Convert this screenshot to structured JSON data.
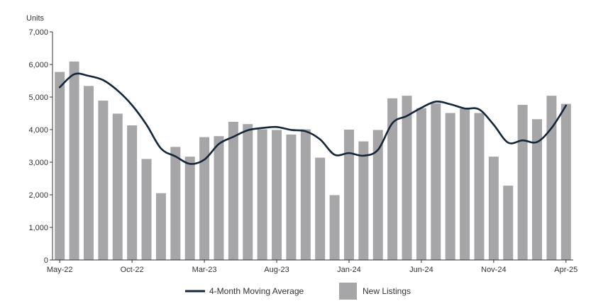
{
  "chart_data": {
    "type": "bar",
    "ylabel": "Units",
    "ylim": [
      0,
      7000
    ],
    "yticks": [
      "0",
      "1,000",
      "2,000",
      "3,000",
      "4,000",
      "5,000",
      "6,000",
      "7,000"
    ],
    "yticks_values": [
      0,
      1000,
      2000,
      3000,
      4000,
      5000,
      6000,
      7000
    ],
    "categories": [
      "May-22",
      "Jun-22",
      "Jul-22",
      "Aug-22",
      "Sep-22",
      "Oct-22",
      "Nov-22",
      "Dec-22",
      "Jan-23",
      "Feb-23",
      "Mar-23",
      "Apr-23",
      "May-23",
      "Jun-23",
      "Jul-23",
      "Aug-23",
      "Sep-23",
      "Oct-23",
      "Nov-23",
      "Dec-23",
      "Jan-24",
      "Feb-24",
      "Mar-24",
      "Apr-24",
      "May-24",
      "Jun-24",
      "Jul-24",
      "Aug-24",
      "Sep-24",
      "Oct-24",
      "Nov-24",
      "Dec-24",
      "Jan-25",
      "Feb-25",
      "Mar-25",
      "Apr-25"
    ],
    "x_tick_labels": [
      "May-22",
      "Oct-22",
      "Mar-23",
      "Aug-23",
      "Jan-24",
      "Jun-24",
      "Nov-24",
      "Apr-25"
    ],
    "series": [
      {
        "name": "New Listings",
        "kind": "bar",
        "color": "#a6a6a8",
        "values": [
          5770,
          6090,
          5340,
          4890,
          4490,
          4130,
          3100,
          2050,
          3470,
          3170,
          3770,
          3800,
          4240,
          4170,
          4010,
          3990,
          3850,
          4010,
          3140,
          1990,
          4000,
          3640,
          3990,
          4960,
          5040,
          4660,
          4810,
          4510,
          4640,
          4510,
          3170,
          2280,
          4760,
          4320,
          5040,
          4790
        ]
      },
      {
        "name": "4-Month Moving Average",
        "kind": "line",
        "color": "#13263a",
        "values": [
          5300,
          5700,
          5650,
          5520,
          5200,
          4750,
          4150,
          3420,
          3180,
          2950,
          3080,
          3560,
          3780,
          3980,
          4050,
          4080,
          3990,
          3950,
          3700,
          3230,
          3280,
          3200,
          3380,
          4200,
          4420,
          4670,
          4860,
          4780,
          4650,
          4620,
          4150,
          3600,
          3670,
          3620,
          4050,
          4740
        ]
      }
    ],
    "legend_position": "bottom"
  }
}
